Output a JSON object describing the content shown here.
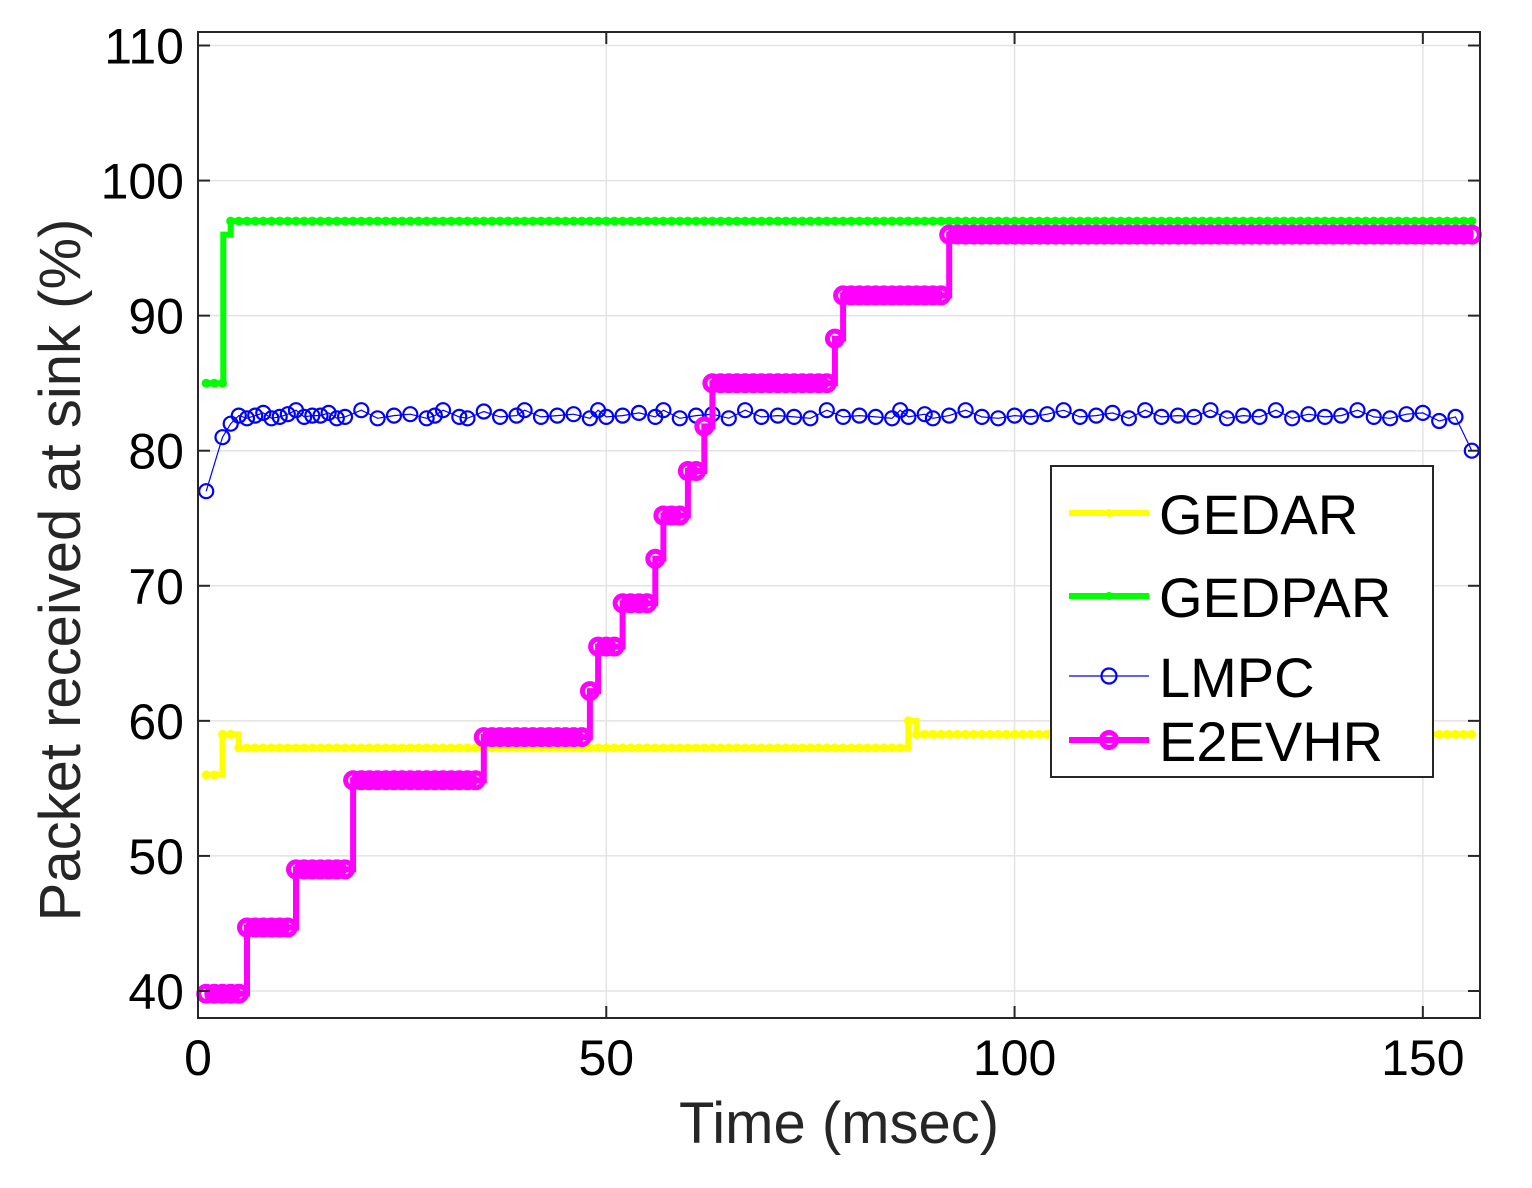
{
  "chart_data": {
    "type": "line",
    "title": "",
    "xlabel": "Time (msec)",
    "ylabel": "Packet received at sink (%)",
    "xlim": [
      0,
      157
    ],
    "ylim": [
      38,
      111
    ],
    "xticks": [
      0,
      50,
      100,
      150
    ],
    "yticks": [
      40,
      50,
      60,
      70,
      80,
      90,
      100,
      110
    ],
    "grid": true,
    "legend_position": "right",
    "series": [
      {
        "name": "GEDAR",
        "color": "#ffff00",
        "line_width": "thick",
        "marker": "dot",
        "steps": [
          [
            1,
            56
          ],
          [
            3,
            59
          ],
          [
            5,
            58
          ],
          [
            86,
            58
          ],
          [
            87,
            60
          ],
          [
            88,
            59
          ],
          [
            156,
            59
          ]
        ]
      },
      {
        "name": "GEDPAR",
        "color": "#00ff00",
        "line_width": "thick",
        "marker": "dot",
        "steps": [
          [
            1,
            85
          ],
          [
            3,
            85
          ],
          [
            3.1,
            96
          ],
          [
            4,
            97
          ],
          [
            156,
            97
          ]
        ]
      },
      {
        "name": "LMPC",
        "color": "#0000ff",
        "line_width": "thin",
        "marker": "circle",
        "points": [
          [
            1,
            77
          ],
          [
            3,
            81
          ],
          [
            4,
            82
          ],
          [
            5,
            82.6
          ],
          [
            6,
            82.4
          ],
          [
            7,
            82.6
          ],
          [
            8,
            82.8
          ],
          [
            9,
            82.4
          ],
          [
            10,
            82.5
          ],
          [
            11,
            82.7
          ],
          [
            12,
            83.0
          ],
          [
            13,
            82.5
          ],
          [
            14,
            82.6
          ],
          [
            15,
            82.6
          ],
          [
            16,
            82.8
          ],
          [
            17,
            82.4
          ],
          [
            18,
            82.5
          ],
          [
            20,
            83.0
          ],
          [
            22,
            82.4
          ],
          [
            24,
            82.6
          ],
          [
            26,
            82.7
          ],
          [
            28,
            82.4
          ],
          [
            29,
            82.6
          ],
          [
            30,
            83.0
          ],
          [
            32,
            82.5
          ],
          [
            33,
            82.4
          ],
          [
            35,
            82.9
          ],
          [
            37,
            82.5
          ],
          [
            39,
            82.6
          ],
          [
            40,
            83.0
          ],
          [
            42,
            82.5
          ],
          [
            44,
            82.6
          ],
          [
            46,
            82.7
          ],
          [
            48,
            82.4
          ],
          [
            49,
            83.0
          ],
          [
            50,
            82.5
          ],
          [
            52,
            82.6
          ],
          [
            54,
            82.8
          ],
          [
            56,
            82.5
          ],
          [
            57,
            83.0
          ],
          [
            59,
            82.4
          ],
          [
            61,
            82.6
          ],
          [
            63,
            82.7
          ],
          [
            65,
            82.4
          ],
          [
            67,
            83.0
          ],
          [
            69,
            82.5
          ],
          [
            71,
            82.6
          ],
          [
            73,
            82.5
          ],
          [
            75,
            82.4
          ],
          [
            77,
            83.0
          ],
          [
            79,
            82.5
          ],
          [
            81,
            82.6
          ],
          [
            83,
            82.5
          ],
          [
            85,
            82.4
          ],
          [
            86,
            83.0
          ],
          [
            87,
            82.5
          ],
          [
            89,
            82.7
          ],
          [
            90,
            82.4
          ],
          [
            92,
            82.6
          ],
          [
            94,
            83.0
          ],
          [
            96,
            82.5
          ],
          [
            98,
            82.4
          ],
          [
            100,
            82.6
          ],
          [
            102,
            82.5
          ],
          [
            104,
            82.7
          ],
          [
            106,
            83.0
          ],
          [
            108,
            82.5
          ],
          [
            110,
            82.6
          ],
          [
            112,
            82.8
          ],
          [
            114,
            82.4
          ],
          [
            116,
            83.0
          ],
          [
            118,
            82.5
          ],
          [
            120,
            82.6
          ],
          [
            122,
            82.5
          ],
          [
            124,
            83.0
          ],
          [
            126,
            82.4
          ],
          [
            128,
            82.6
          ],
          [
            130,
            82.5
          ],
          [
            132,
            83.0
          ],
          [
            134,
            82.4
          ],
          [
            136,
            82.7
          ],
          [
            138,
            82.5
          ],
          [
            140,
            82.6
          ],
          [
            142,
            83.0
          ],
          [
            144,
            82.5
          ],
          [
            146,
            82.4
          ],
          [
            148,
            82.7
          ],
          [
            150,
            82.8
          ],
          [
            152,
            82.2
          ],
          [
            154,
            82.5
          ],
          [
            156,
            80
          ]
        ]
      },
      {
        "name": "E2EVHR",
        "color": "#ff00ff",
        "line_width": "thick",
        "marker": "circle",
        "steps": [
          [
            1,
            39.8
          ],
          [
            6,
            39.8
          ],
          [
            6,
            44.7
          ],
          [
            12,
            44.7
          ],
          [
            12,
            49
          ],
          [
            19,
            49
          ],
          [
            19,
            55.6
          ],
          [
            35,
            55.6
          ],
          [
            35,
            58.8
          ],
          [
            48,
            58.8
          ],
          [
            48,
            62.2
          ],
          [
            49,
            65.5
          ],
          [
            52,
            65.5
          ],
          [
            52,
            68.7
          ],
          [
            56,
            68.7
          ],
          [
            56,
            72
          ],
          [
            57,
            75.2
          ],
          [
            60,
            75.2
          ],
          [
            60,
            78.5
          ],
          [
            62,
            78.5
          ],
          [
            62,
            81.8
          ],
          [
            63,
            85
          ],
          [
            78,
            85
          ],
          [
            78,
            88.3
          ],
          [
            79,
            91.5
          ],
          [
            92,
            91.5
          ],
          [
            92,
            96
          ],
          [
            156,
            96
          ]
        ]
      }
    ]
  }
}
